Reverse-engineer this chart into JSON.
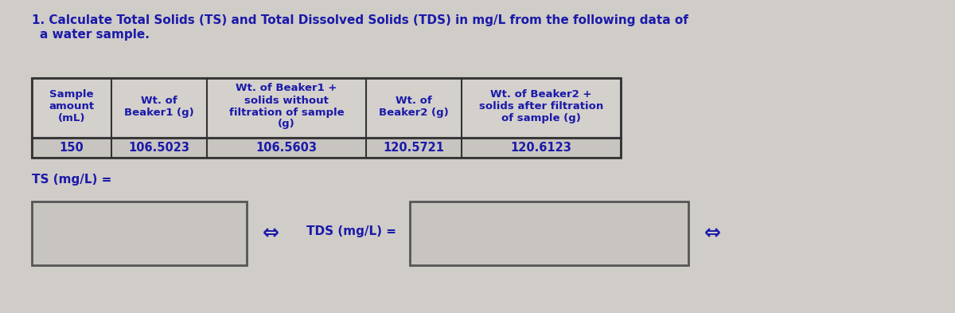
{
  "title_line1": "1. Calculate Total Solids (TS) and Total Dissolved Solids (TDS) in mg/L from the following data of",
  "title_line2": "   a water sample.",
  "title_underline_text": "mg/L",
  "bg_color": "#d0ccc8",
  "table_header_color": "#d0ccc8",
  "table_data_color": "#c8c4c0",
  "text_color": "#1a1aaa",
  "col_headers": [
    "Sample\namount\n(mL)",
    "Wt. of\nBeaker1 (g)",
    "Wt. of Beaker1 +\nsolids without\nfiltration of sample\n(g)",
    "Wt. of\nBeaker2 (g)",
    "Wt. of Beaker2 +\nsolids after filtration\nof sample (g)"
  ],
  "data_row": [
    "150",
    "106.5023",
    "106.5603",
    "120.5721",
    "120.6123"
  ],
  "ts_label": "TS (mg/L) =",
  "tds_label": "TDS (mg/L) =",
  "arrow_symbol": "⇔"
}
